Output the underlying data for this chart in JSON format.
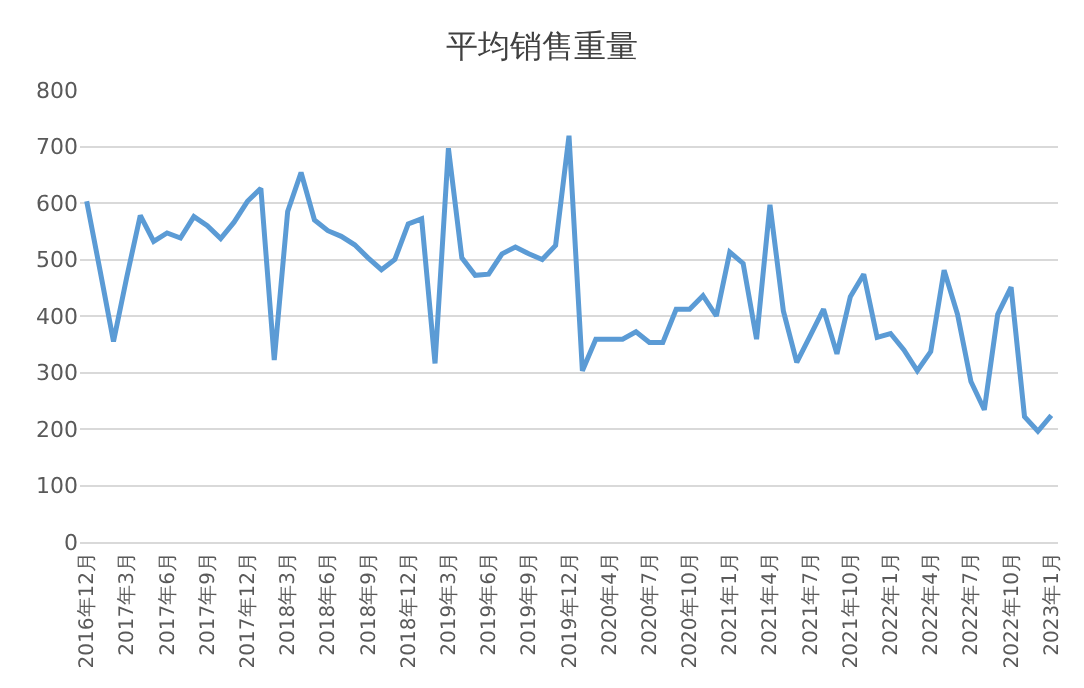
{
  "chart_data": {
    "type": "line",
    "title": "平均销售重量",
    "categories": [
      "2016年12月",
      null,
      null,
      "2017年3月",
      null,
      null,
      "2017年6月",
      null,
      null,
      "2017年9月",
      null,
      null,
      "2017年12月",
      null,
      null,
      "2018年3月",
      null,
      null,
      "2018年6月",
      null,
      null,
      "2018年9月",
      null,
      null,
      "2018年12月",
      null,
      null,
      "2019年3月",
      null,
      null,
      "2019年6月",
      null,
      null,
      "2019年9月",
      null,
      null,
      "2019年12月",
      null,
      null,
      "2020年4月",
      null,
      null,
      "2020年7月",
      null,
      null,
      "2020年10月",
      null,
      null,
      "2021年1月",
      null,
      null,
      "2021年4月",
      null,
      null,
      "2021年7月",
      null,
      null,
      "2021年10月",
      null,
      null,
      "2022年1月",
      null,
      null,
      "2022年4月",
      null,
      null,
      "2022年7月",
      null,
      null,
      "2022年10月",
      null,
      null,
      "2023年1月"
    ],
    "series": [
      {
        "color": "#5b9bd5",
        "values": [
          603,
          480,
          355,
          470,
          578,
          532,
          547,
          538,
          576,
          560,
          537,
          566,
          603,
          626,
          322,
          585,
          654,
          570,
          551,
          541,
          526,
          503,
          482,
          500,
          563,
          572,
          316,
          697,
          503,
          472,
          474,
          510,
          522,
          510,
          500,
          525,
          719,
          303,
          359,
          359,
          359,
          372,
          353,
          353,
          412,
          412,
          436,
          400,
          513,
          493,
          359,
          597,
          409,
          318,
          365,
          412,
          333,
          434,
          474,
          362,
          369,
          340,
          303,
          337,
          481,
          403,
          284,
          234,
          403,
          451,
          222,
          196,
          224
        ]
      }
    ],
    "ylim": [
      0,
      800
    ],
    "yticks": [
      0,
      100,
      200,
      300,
      400,
      500,
      600,
      700,
      800
    ],
    "grid": "y",
    "legend": false,
    "marker": "none",
    "line_style": "solid"
  }
}
